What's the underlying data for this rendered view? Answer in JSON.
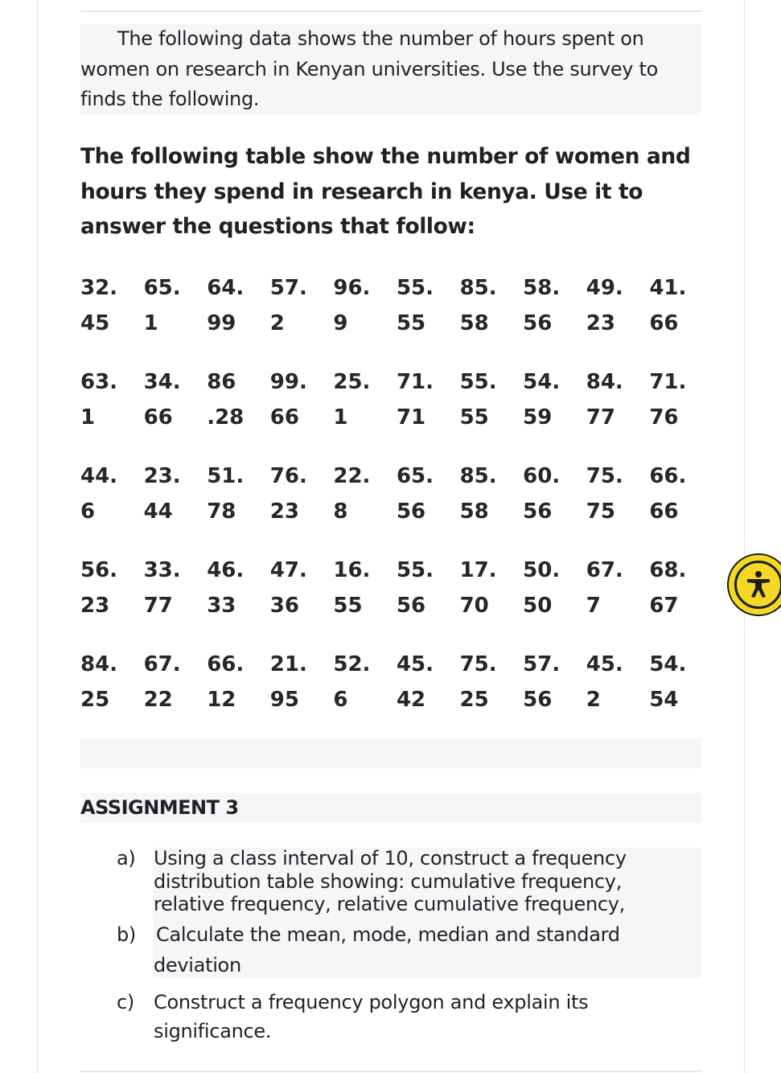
{
  "intro": "The following data shows the number of hours spent on women on research in Kenyan universities. Use the survey to finds the following.",
  "heading": "The following table show the number of women and hours they spend in research in kenya. Use it to answer the questions that follow:",
  "data_rows": [
    [
      [
        "32.",
        "45"
      ],
      [
        "65.",
        "1"
      ],
      [
        "64.",
        "99"
      ],
      [
        "57.",
        "2"
      ],
      [
        "96.",
        "9"
      ],
      [
        "55.",
        "55"
      ],
      [
        "85.",
        "58"
      ],
      [
        "58.",
        "56"
      ],
      [
        "49.",
        "23"
      ],
      [
        "41.",
        "66"
      ]
    ],
    [
      [
        "63.",
        "1"
      ],
      [
        "34.",
        "66"
      ],
      [
        "86",
        ".28"
      ],
      [
        "99.",
        "66"
      ],
      [
        "25.",
        "1"
      ],
      [
        "71.",
        "71"
      ],
      [
        "55.",
        "55"
      ],
      [
        "54.",
        "59"
      ],
      [
        "84.",
        "77"
      ],
      [
        "71.",
        "76"
      ]
    ],
    [
      [
        "44.",
        "6"
      ],
      [
        "23.",
        "44"
      ],
      [
        "51.",
        "78"
      ],
      [
        "76.",
        "23"
      ],
      [
        "22.",
        "8"
      ],
      [
        "65.",
        "56"
      ],
      [
        "85.",
        "58"
      ],
      [
        "60.",
        "56"
      ],
      [
        "75.",
        "75"
      ],
      [
        "66.",
        "66"
      ]
    ],
    [
      [
        "56.",
        "23"
      ],
      [
        "33.",
        "77"
      ],
      [
        "46.",
        "33"
      ],
      [
        "47.",
        "36"
      ],
      [
        "16.",
        "55"
      ],
      [
        "55.",
        "56"
      ],
      [
        "17.",
        "70"
      ],
      [
        "50.",
        "50"
      ],
      [
        "67.",
        "7"
      ],
      [
        "68.",
        "67"
      ]
    ],
    [
      [
        "84.",
        "25"
      ],
      [
        "67.",
        "22"
      ],
      [
        "66.",
        "12"
      ],
      [
        "21.",
        "95"
      ],
      [
        "52.",
        "6"
      ],
      [
        "45.",
        "42"
      ],
      [
        "75.",
        "25"
      ],
      [
        "57.",
        "56"
      ],
      [
        "45.",
        "2"
      ],
      [
        "54.",
        "54"
      ]
    ]
  ],
  "assignment_title": "ASSIGNMENT 3",
  "questions": [
    {
      "label": "a)",
      "text": "Using a class interval of 10, construct a frequency distribution table showing: cumulative frequency, relative frequency, relative cumulative frequency,"
    },
    {
      "label": "b)",
      "text": "Calculate the mean, mode, median and standard deviation"
    },
    {
      "label": "c)",
      "text": "Construct a frequency polygon and explain its significance."
    }
  ],
  "accessibility_icon": "accessibility-icon",
  "colors": {
    "accessibility_bg": "#f5d823",
    "block_bg": "#f4f6f8",
    "text": "#1f2124"
  }
}
